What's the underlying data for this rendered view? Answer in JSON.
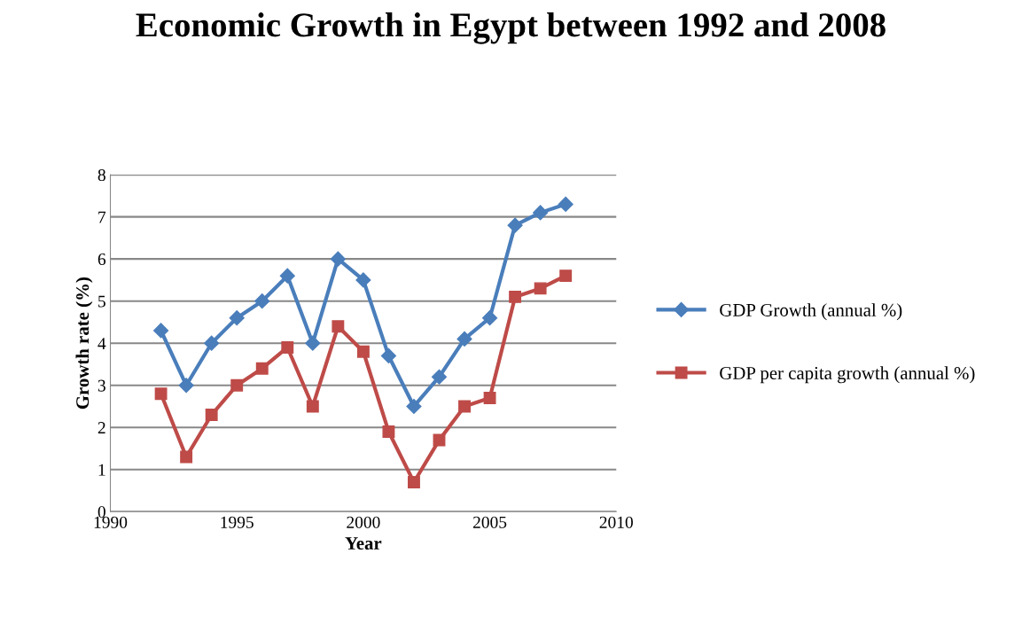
{
  "chart_data": {
    "type": "line",
    "title": "Economic Growth in Egypt between 1992 and 2008",
    "xlabel": "Year",
    "ylabel": "Growth rate (%)",
    "x": [
      1992,
      1993,
      1994,
      1995,
      1996,
      1997,
      1998,
      1999,
      2000,
      2001,
      2002,
      2003,
      2004,
      2005,
      2006,
      2007,
      2008
    ],
    "series": [
      {
        "name": "GDP Growth (annual %)",
        "color": "#4a7ebb",
        "marker": "diamond",
        "values": [
          4.3,
          3.0,
          4.0,
          4.6,
          5.0,
          5.6,
          4.0,
          6.0,
          5.5,
          3.7,
          2.5,
          3.2,
          4.1,
          4.6,
          6.8,
          7.1,
          7.3
        ]
      },
      {
        "name": "GDP per capita growth (annual %)",
        "color": "#be4b48",
        "marker": "square",
        "values": [
          2.8,
          1.3,
          2.3,
          3.0,
          3.4,
          3.9,
          2.5,
          4.4,
          3.8,
          1.9,
          0.7,
          1.7,
          2.5,
          2.7,
          5.1,
          5.3,
          5.6
        ]
      }
    ],
    "xlim": [
      1990,
      2010
    ],
    "xticks": [
      1990,
      1995,
      2000,
      2005,
      2010
    ],
    "ylim": [
      0,
      8
    ],
    "yticks": [
      0,
      1,
      2,
      3,
      4,
      5,
      6,
      7,
      8
    ],
    "grid": "y",
    "legend": "right",
    "line_style": "solid"
  }
}
